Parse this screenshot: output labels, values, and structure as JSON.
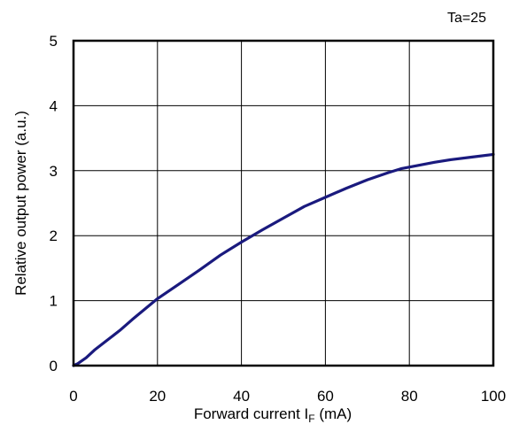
{
  "chart_data": {
    "type": "line",
    "annotation": "Ta=25",
    "xlabel": {
      "main": "Forward current I",
      "sub": "F",
      "unit": " (mA)"
    },
    "ylabel": "Relative output power (a.u.)",
    "xlim": [
      0,
      100
    ],
    "ylim": [
      0,
      5
    ],
    "xticks": [
      0,
      20,
      40,
      60,
      80,
      100
    ],
    "yticks": [
      0,
      1,
      2,
      3,
      4,
      5
    ],
    "x_tick_labels": [
      "0",
      "20",
      "40",
      "60",
      "80",
      "100"
    ],
    "y_tick_labels": [
      "0",
      "1",
      "2",
      "3",
      "4",
      "5"
    ],
    "grid": true,
    "line_color": "#1a1a7e",
    "series": [
      {
        "x": [
          0,
          1,
          3,
          5,
          8,
          11,
          14,
          17,
          20,
          25,
          30,
          35,
          40,
          45,
          50,
          55,
          60,
          65,
          70,
          75,
          78,
          82,
          86,
          90,
          95,
          100
        ],
        "y": [
          0,
          0.03,
          0.12,
          0.24,
          0.39,
          0.54,
          0.71,
          0.87,
          1.03,
          1.25,
          1.47,
          1.7,
          1.9,
          2.09,
          2.27,
          2.45,
          2.59,
          2.73,
          2.86,
          2.97,
          3.03,
          3.08,
          3.13,
          3.17,
          3.21,
          3.25
        ]
      }
    ]
  }
}
